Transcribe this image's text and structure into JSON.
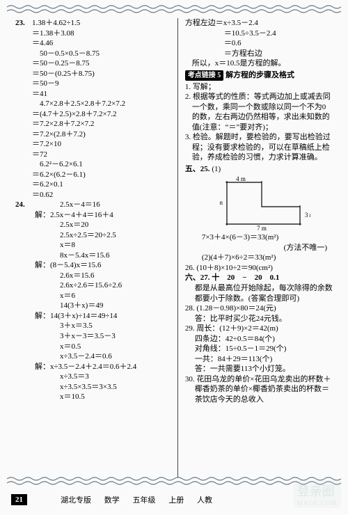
{
  "page_number": "21",
  "footer": {
    "a": "湖北专版",
    "b": "数学",
    "c": "五年级",
    "d": "上册",
    "e": "人教"
  },
  "watermark": {
    "big": "登亲圈",
    "small": "MXGE.COM"
  },
  "left": {
    "q23": {
      "num": "23.",
      "lines": [
        "1.38＋4.62÷1.5",
        "＝1.38＋3.08",
        "＝4.46",
        "　50－0.5×0.5－8.75",
        "＝50－0.25－8.75",
        "＝50－(0.25＋8.75)",
        "＝50－9",
        "＝41",
        "　4.7×2.8＋2.5×2.8＋7.2×7.2",
        "＝(4.7＋2.5)×2.8＋7.2×7.2",
        "＝7.2×2.8＋7.2×7.2",
        "＝7.2×(2.8＋7.2)",
        "＝7.2×10",
        "＝72",
        "　6.2²－6.2×6.1",
        "＝6.2×(6.2－6.1)",
        "＝6.2×0.1",
        "＝0.62"
      ]
    },
    "q24": {
      "num": "24.",
      "groups": [
        {
          "head": "2.5x－4＝16",
          "lines": [
            "解：2.5x－4＋4＝16＋4",
            "2.5x＝20",
            "2.5x÷2.5＝20÷2.5",
            "x＝8"
          ]
        },
        {
          "head": "8x－5.4x＝15.6",
          "lines": [
            "解：(8－5.4)x＝15.6",
            "2.6x＝15.6",
            "2.6x÷2.6＝15.6÷2.6",
            "x＝6"
          ]
        },
        {
          "head": "14(3＋x)＝49",
          "lines": [
            "解：14(3＋x)÷14＝49÷14",
            "3＋x＝3.5",
            "3＋x－3＝3.5－3",
            "x＝0.5"
          ]
        },
        {
          "head": "x÷3.5－2.4＝0.6",
          "lines": [
            "解：x÷3.5－2.4＋2.4＝0.6＋2.4",
            "x÷3.5＝3",
            "x÷3.5×3.5＝3×3.5",
            "x＝10.5"
          ]
        }
      ]
    }
  },
  "right": {
    "top": [
      "方程左边＝x÷3.5－2.4",
      "＝10.5÷3.5－2.4",
      "＝0.6",
      "＝方程右边",
      "所以，x＝10.5是方程的解。"
    ],
    "kd": {
      "tag": "考点链接 5",
      "title": "解方程的步骤及格式",
      "body": [
        "1. 写解；",
        "2. 根据等式的性质：等式两边加上或减去同一个数，乘同一个数或除以同一个不为0的数，左右两边仍然相等，求出未知数的值(注意：“＝”要对齐)；",
        "3. 检验。解题时，要检验的，要写出检验过程；没有要求检验的，可以在草稿纸上检验，养成检验的习惯，力求计算准确。"
      ]
    },
    "q25": {
      "label": "五、25.",
      "part1": "(1)",
      "diagram": {
        "a": "4 m",
        "b": "6 m",
        "c": "3 m",
        "d": "7 m"
      },
      "calc1": "7×3＋4×(6－3)＝33(m²)",
      "note": "(方法不唯一)",
      "calc2": "(2)(4＋7)×6÷2＝33(m²)"
    },
    "q26": "26. (10＋8)×10÷2＝90(cm²)",
    "q27": {
      "head": "六、27. 十　20　−　20　0.1",
      "body": "都是从最高位开始除起，每次除得的余数都要小于除数。(答案合理即可)"
    },
    "q28": {
      "l1": "28. (1.28－0.98)×80＝24(元)",
      "l2": "答：比平时买少花24元钱。"
    },
    "q29": {
      "l1": "29. 周长：(12＋9)×2＝42(m)",
      "l2": "四条边：42÷0.5＝84(个)",
      "l3": "对角线：15÷0.5－1＝29(个)",
      "l4": "一共：84＋29＝113(个)",
      "l5": "答：一共需要113个小灯笼。"
    },
    "q30": {
      "l1": "30. 花田乌龙的单价×花田乌龙卖出的杯数＋椰香奶茶的单价×椰香奶茶卖出的杯数＝茶饮店今天的总收入"
    }
  }
}
